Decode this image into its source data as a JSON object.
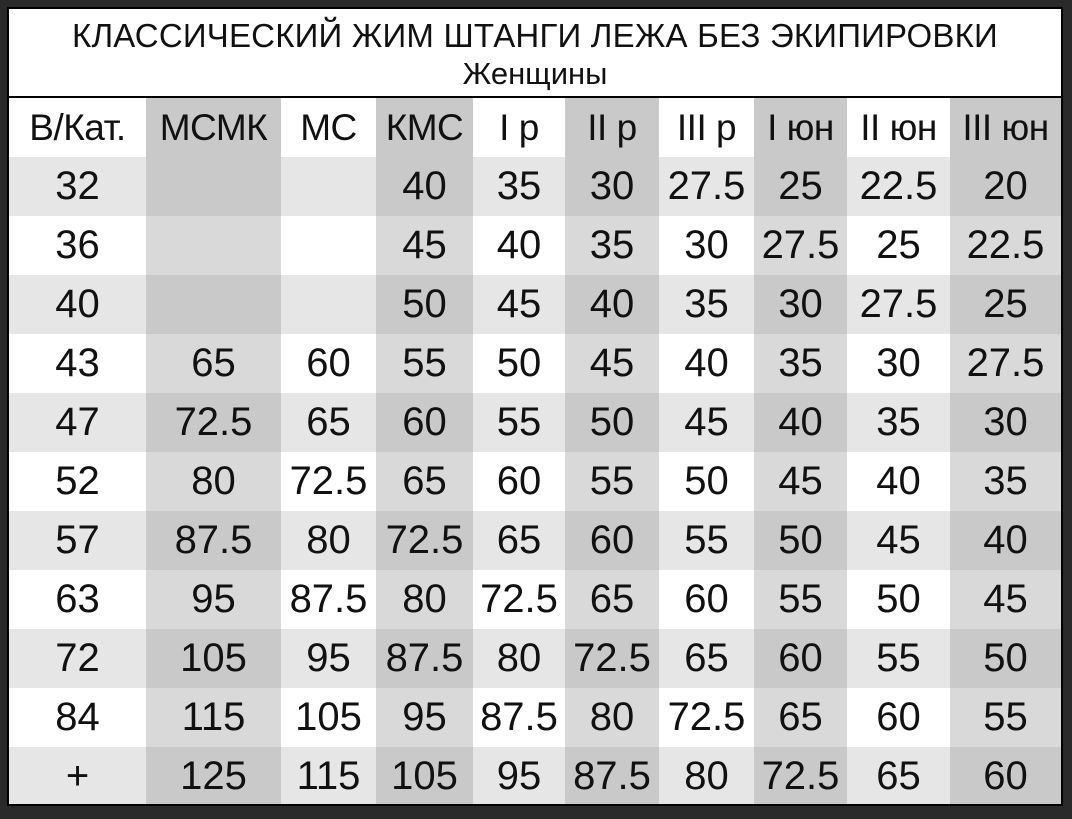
{
  "title": "КЛАССИЧЕСКИЙ ЖИМ ШТАНГИ ЛЕЖА БЕЗ ЭКИПИРОВКИ",
  "subtitle": "Женщины",
  "table": {
    "headers": [
      "В/Кат.",
      "МСМК",
      "МС",
      "КМС",
      "I р",
      "II р",
      "III р",
      "I юн",
      "II юн",
      "III юн"
    ],
    "rows": [
      [
        "32",
        "",
        "",
        "40",
        "35",
        "30",
        "27.5",
        "25",
        "22.5",
        "20"
      ],
      [
        "36",
        "",
        "",
        "45",
        "40",
        "35",
        "30",
        "27.5",
        "25",
        "22.5"
      ],
      [
        "40",
        "",
        "",
        "50",
        "45",
        "40",
        "35",
        "30",
        "27.5",
        "25"
      ],
      [
        "43",
        "65",
        "60",
        "55",
        "50",
        "45",
        "40",
        "35",
        "30",
        "27.5"
      ],
      [
        "47",
        "72.5",
        "65",
        "60",
        "55",
        "50",
        "45",
        "40",
        "35",
        "30"
      ],
      [
        "52",
        "80",
        "72.5",
        "65",
        "60",
        "55",
        "50",
        "45",
        "40",
        "35"
      ],
      [
        "57",
        "87.5",
        "80",
        "72.5",
        "65",
        "60",
        "55",
        "50",
        "45",
        "40"
      ],
      [
        "63",
        "95",
        "87.5",
        "80",
        "72.5",
        "65",
        "60",
        "55",
        "50",
        "45"
      ],
      [
        "72",
        "105",
        "95",
        "87.5",
        "80",
        "72.5",
        "65",
        "60",
        "55",
        "50"
      ],
      [
        "84",
        "115",
        "105",
        "95",
        "87.5",
        "80",
        "72.5",
        "65",
        "60",
        "55"
      ],
      [
        "+",
        "125",
        "115",
        "105",
        "95",
        "87.5",
        "80",
        "72.5",
        "65",
        "60"
      ]
    ]
  },
  "colors": {
    "background": "#ffffff",
    "row_shade": "#e6e6e6",
    "column_shade": "#c9c9c9",
    "border": "#000000",
    "text": "#111111"
  }
}
